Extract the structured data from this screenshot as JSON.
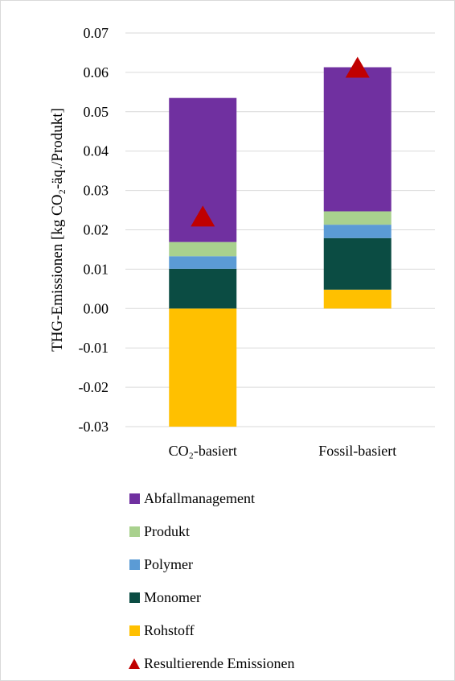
{
  "chart_data": {
    "type": "bar",
    "stacked": true,
    "categories": [
      "CO₂-basiert",
      "Fossil-basiert"
    ],
    "ylabel": "THG-Emissionen [kg CO₂-äq./Produkt]",
    "xlabel": "",
    "ylim": [
      -0.03,
      0.07
    ],
    "yticks": [
      "-0.03",
      "-0.02",
      "-0.01",
      "0.00",
      "0.01",
      "0.02",
      "0.03",
      "0.04",
      "0.05",
      "0.06",
      "0.07"
    ],
    "ytick_values": [
      -0.03,
      -0.02,
      -0.01,
      0.0,
      0.01,
      0.02,
      0.03,
      0.04,
      0.05,
      0.06,
      0.07
    ],
    "grid": true,
    "legend_position": "bottom",
    "series": [
      {
        "name": "Rohstoff",
        "color": "#ffc000",
        "values": [
          -0.03,
          0.0048
        ]
      },
      {
        "name": "Monomer",
        "color": "#0b4c43",
        "values": [
          0.0101,
          0.0131
        ]
      },
      {
        "name": "Polymer",
        "color": "#5b9bd5",
        "values": [
          0.0032,
          0.0034
        ]
      },
      {
        "name": "Produkt",
        "color": "#a9d18e",
        "values": [
          0.0036,
          0.0034
        ]
      },
      {
        "name": "Abfallmanagement",
        "color": "#7030a0",
        "values": [
          0.0366,
          0.0366
        ]
      }
    ],
    "markers": {
      "name": "Resultierende Emissionen",
      "color": "#c00000",
      "shape": "triangle",
      "values": [
        0.0235,
        0.0613
      ]
    }
  },
  "legend": {
    "items": [
      {
        "label": "Abfallmanagement",
        "color": "#7030a0",
        "shape": "square"
      },
      {
        "label": "Produkt",
        "color": "#a9d18e",
        "shape": "square"
      },
      {
        "label": "Polymer",
        "color": "#5b9bd5",
        "shape": "square"
      },
      {
        "label": "Monomer",
        "color": "#0b4c43",
        "shape": "square"
      },
      {
        "label": "Rohstoff",
        "color": "#ffc000",
        "shape": "square"
      },
      {
        "label": "Resultierende Emissionen",
        "color": "#c00000",
        "shape": "triangle"
      }
    ]
  }
}
